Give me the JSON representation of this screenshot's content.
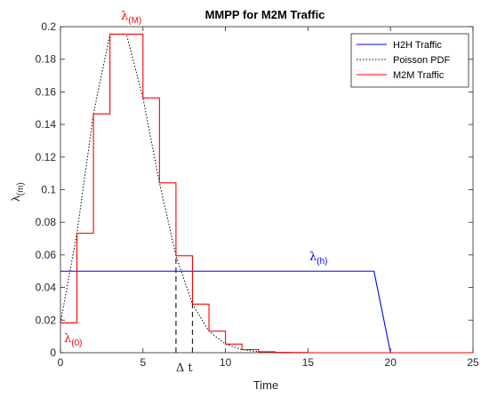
{
  "chart_data": {
    "type": "line",
    "title": "MMPP for M2M Traffic",
    "xlabel": "Time",
    "ylabel": "λ",
    "ylabel_sub": "(m)",
    "xlim": [
      0,
      25
    ],
    "ylim": [
      0,
      0.2
    ],
    "xticks": [
      0,
      5,
      10,
      15,
      20,
      25
    ],
    "yticks": [
      0,
      0.02,
      0.04,
      0.06,
      0.08,
      0.1,
      0.12,
      0.14,
      0.16,
      0.18,
      0.2
    ],
    "xtick_labels": [
      "0",
      "5",
      "10",
      "15",
      "20",
      "25"
    ],
    "ytick_labels": [
      "0",
      "0.02",
      "0.04",
      "0.06",
      "0.08",
      "0.1",
      "0.12",
      "0.14",
      "0.16",
      "0.18",
      "0.2"
    ],
    "grid": false,
    "legend_position": "top-right",
    "series": [
      {
        "name": "H2H Traffic",
        "style": "solid",
        "color": "#0000ff",
        "x": [
          0,
          19,
          20,
          25
        ],
        "y": [
          0.05,
          0.05,
          0,
          0
        ]
      },
      {
        "name": "Poisson PDF",
        "style": "dotted",
        "color": "#000000",
        "x": [
          0,
          1,
          2,
          3,
          4,
          5,
          6,
          7,
          8,
          9,
          10,
          11,
          12,
          13,
          14,
          15
        ],
        "y": [
          0.0183,
          0.0733,
          0.1465,
          0.1954,
          0.1954,
          0.1563,
          0.1042,
          0.0595,
          0.0298,
          0.0132,
          0.0053,
          0.0019,
          0.0006,
          0.0002,
          0.0001,
          0
        ]
      },
      {
        "name": "M2M Traffic",
        "style": "step",
        "color": "#ff0000",
        "x": [
          0,
          1,
          2,
          3,
          4,
          5,
          6,
          7,
          8,
          9,
          10,
          11,
          12,
          13,
          14,
          15,
          25
        ],
        "y": [
          0.0183,
          0.0733,
          0.1465,
          0.1954,
          0.1954,
          0.1563,
          0.1042,
          0.0595,
          0.0298,
          0.0132,
          0.0053,
          0.0019,
          0.0006,
          0.0002,
          0.0001,
          0,
          0
        ]
      }
    ],
    "annotations": {
      "lambda_m": {
        "base": "λ",
        "sub": "(M)",
        "color": "#ff0000"
      },
      "lambda_0": {
        "base": "λ",
        "sub": "(0)",
        "color": "#ff0000"
      },
      "lambda_h": {
        "base": "λ",
        "sub": "(h)",
        "color": "#0000ff"
      },
      "delta_t": {
        "text": "Δ t"
      }
    },
    "dashed_markers_x": [
      7,
      8
    ]
  }
}
